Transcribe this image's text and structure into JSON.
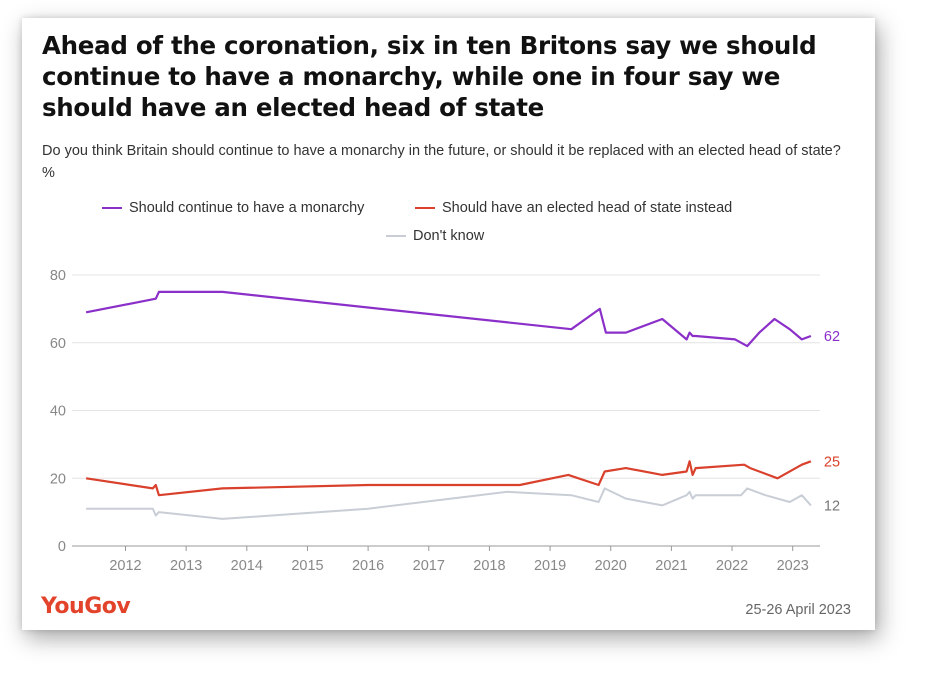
{
  "header": {
    "title": "Ahead of the coronation, six in ten Britons say we should continue to have a monarchy, while one in four say we should have an elected head of state",
    "subtitle": "Do you think Britain should continue to have a monarchy in the future, or should it be replaced with an elected head of state? %"
  },
  "footer": {
    "brand": "YouGov",
    "date": "25-26 April 2023"
  },
  "colors": {
    "monarchy": "#8b2fc9",
    "elected": "#d9412c",
    "dont_know": "#c9ced6",
    "grid": "#e4e4e4",
    "axis": "#999999",
    "tick_label": "#888888"
  },
  "chart_data": {
    "type": "line",
    "title": "Ahead of the coronation, six in ten Britons say we should continue to have a monarchy, while one in four say we should have an elected head of state",
    "xlabel": "",
    "ylabel": "",
    "ylim": [
      0,
      80
    ],
    "xlim": [
      2011.25,
      2023.45
    ],
    "yticks": [
      0,
      20,
      40,
      60,
      80
    ],
    "xticks": [
      2012,
      2013,
      2014,
      2015,
      2016,
      2017,
      2018,
      2019,
      2020,
      2021,
      2022,
      2023
    ],
    "grid": true,
    "legend_position": "top",
    "series": [
      {
        "name": "Should continue to have a monarchy",
        "color": "#8b2fc9",
        "end_label": "62",
        "x": [
          2011.35,
          2012.5,
          2012.55,
          2013.0,
          2013.6,
          2019.35,
          2019.82,
          2019.92,
          2020.25,
          2020.85,
          2021.25,
          2021.3,
          2021.35,
          2021.4,
          2022.05,
          2022.25,
          2022.45,
          2022.7,
          2022.95,
          2023.15,
          2023.3
        ],
        "y": [
          69,
          73,
          75,
          75,
          75,
          64,
          70,
          63,
          63,
          67,
          61,
          63,
          62,
          62,
          61,
          59,
          63,
          67,
          64,
          61,
          62
        ]
      },
      {
        "name": "Should have an elected head of state instead",
        "color": "#d9412c",
        "end_label": "25",
        "x": [
          2011.35,
          2012.45,
          2012.5,
          2012.55,
          2013.6,
          2016.0,
          2018.5,
          2019.3,
          2019.8,
          2019.9,
          2020.25,
          2020.85,
          2021.25,
          2021.3,
          2021.35,
          2021.4,
          2022.2,
          2022.3,
          2022.75,
          2023.15,
          2023.3
        ],
        "y": [
          20,
          17,
          18,
          15,
          17,
          18,
          18,
          21,
          18,
          22,
          23,
          21,
          22,
          25,
          21,
          23,
          24,
          23,
          20,
          24,
          25
        ]
      },
      {
        "name": "Don't know",
        "color": "#c9ced6",
        "end_label": "12",
        "x": [
          2011.35,
          2012.45,
          2012.5,
          2012.55,
          2013.6,
          2016.0,
          2018.3,
          2019.35,
          2019.8,
          2019.9,
          2020.25,
          2020.85,
          2021.25,
          2021.3,
          2021.35,
          2021.4,
          2022.15,
          2022.25,
          2022.55,
          2022.95,
          2023.15,
          2023.3
        ],
        "y": [
          11,
          11,
          9,
          10,
          8,
          11,
          16,
          15,
          13,
          17,
          14,
          12,
          15,
          16,
          14,
          15,
          15,
          17,
          15,
          13,
          15,
          12
        ]
      }
    ]
  }
}
